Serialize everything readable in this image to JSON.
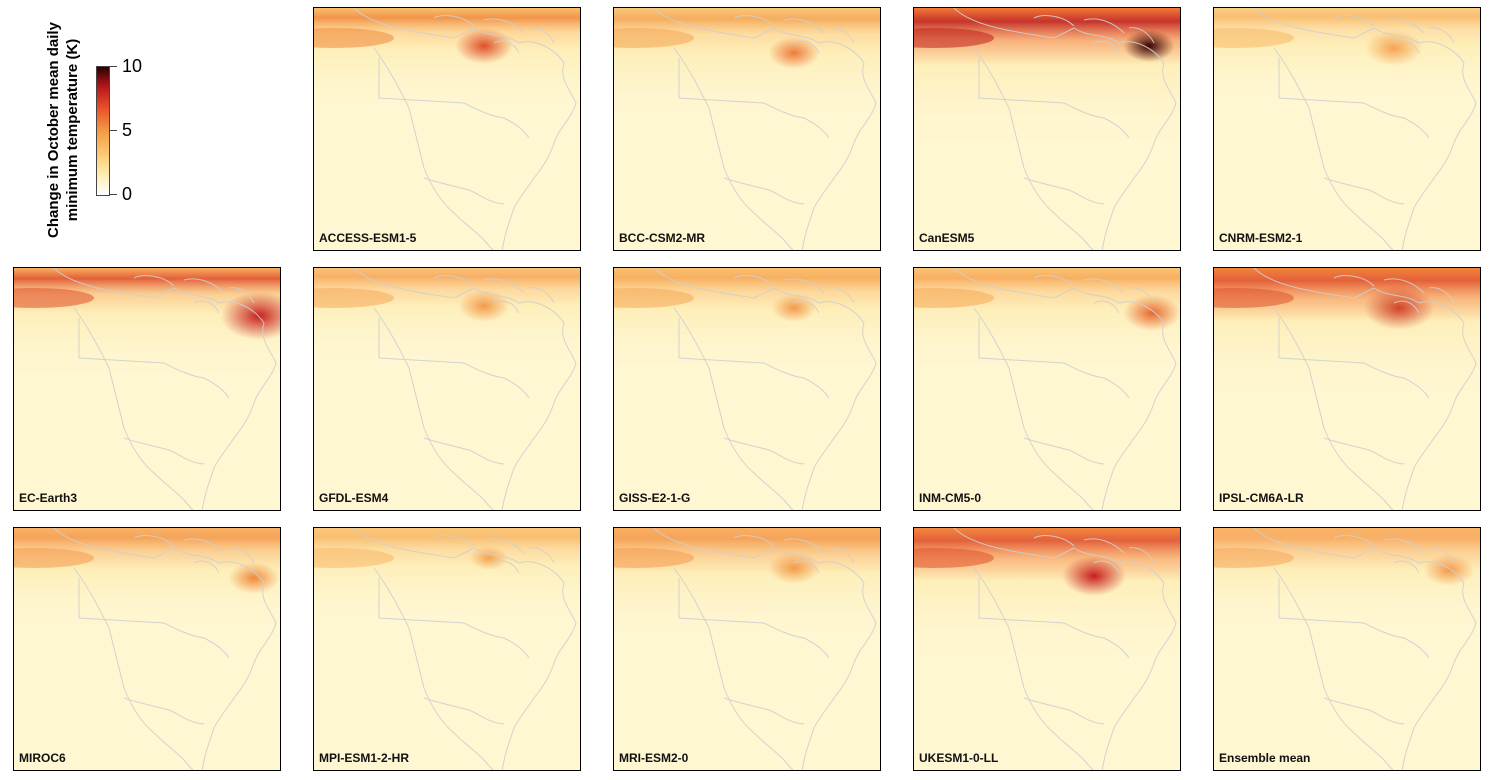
{
  "legend": {
    "title_line1": "Change in October mean daily",
    "title_line2": "minimum temperature (K)",
    "ticks": [
      "10",
      "5",
      "0"
    ],
    "scale_colors": [
      "#ffffff",
      "#fdeaa5",
      "#fbc16a",
      "#f59a46",
      "#e8502a",
      "#b5151b",
      "#2a0000"
    ]
  },
  "panels": [
    {
      "label": "ACCESS-ESM1-5"
    },
    {
      "label": "BCC-CSM2-MR"
    },
    {
      "label": "CanESM5"
    },
    {
      "label": "CNRM-ESM2-1"
    },
    {
      "label": "EC-Earth3"
    },
    {
      "label": "GFDL-ESM4"
    },
    {
      "label": "GISS-E2-1-G"
    },
    {
      "label": "INM-CM5-0"
    },
    {
      "label": "IPSL-CM6A-LR"
    },
    {
      "label": "MIROC6"
    },
    {
      "label": "MPI-ESM1-2-HR"
    },
    {
      "label": "MRI-ESM2-0"
    },
    {
      "label": "UKESM1-0-LL"
    },
    {
      "label": "Ensemble mean"
    }
  ]
}
